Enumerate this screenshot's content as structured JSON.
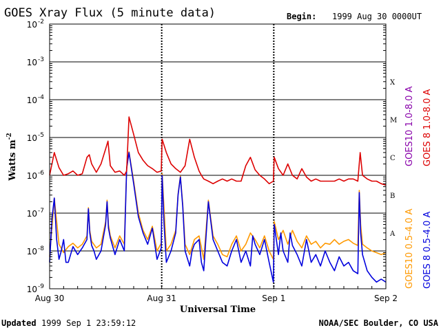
{
  "header": {
    "title": "GOES Xray Flux (5 minute data)",
    "begin_label": "Begin:",
    "begin_value": "1999 Aug 30 0000UT"
  },
  "footer": {
    "updated_label": "Updated",
    "updated_value": "1999 Sep  1 23:59:12",
    "credit": "NOAA/SEC Boulder, CO USA"
  },
  "colors": {
    "goes8_long": "#dd0000",
    "goes10_long": "#8800aa",
    "goes10_short": "#ff9900",
    "goes8_short": "#0000dd",
    "grid": "#000000"
  },
  "chart_data": {
    "type": "line",
    "title": "GOES Xray Flux (5 minute data)",
    "xlabel": "Universal Time",
    "ylabel": "Watts m",
    "ylabel_superscript": "-2",
    "y_scale": "log",
    "ylim": [
      1e-09,
      0.01
    ],
    "y_ticks": [
      {
        "base": "10",
        "exp": "-9"
      },
      {
        "base": "10",
        "exp": "-8"
      },
      {
        "base": "10",
        "exp": "-7"
      },
      {
        "base": "10",
        "exp": "-6"
      },
      {
        "base": "10",
        "exp": "-5"
      },
      {
        "base": "10",
        "exp": "-4"
      },
      {
        "base": "10",
        "exp": "-3"
      },
      {
        "base": "10",
        "exp": "-2"
      }
    ],
    "xlim": [
      0,
      72
    ],
    "x_ticks": [
      {
        "x": 0,
        "label": "Aug 30"
      },
      {
        "x": 24,
        "label": "Aug 31"
      },
      {
        "x": 48,
        "label": "Sep 1"
      },
      {
        "x": 72,
        "label": "Sep 2"
      }
    ],
    "flare_classes": [
      {
        "label": "A",
        "y": 3e-08
      },
      {
        "label": "B",
        "y": 3e-07
      },
      {
        "label": "C",
        "y": 3e-06
      },
      {
        "label": "M",
        "y": 3e-05
      },
      {
        "label": "X",
        "y": 0.0003
      }
    ],
    "legend": {
      "placement": "right",
      "entries": [
        "GOES 8  1.0-8.0 A",
        "GOES10  1.0-8.0 A",
        "GOES 8  0.5-4.0 A",
        "GOES10  0.5-4.0 A"
      ]
    },
    "series": [
      {
        "name": "GOES 8  1.0-8.0 A",
        "color": "#dd0000",
        "x": [
          0,
          1,
          2,
          3,
          4,
          5,
          6,
          7,
          8,
          8.5,
          9,
          10,
          11,
          12,
          12.5,
          13,
          14,
          15,
          16,
          16.5,
          17,
          18,
          19,
          20,
          21,
          22,
          23,
          23.9,
          24.1,
          25,
          26,
          27,
          28,
          29,
          30,
          31,
          32,
          32.5,
          33,
          34,
          35,
          36,
          37,
          38,
          39,
          40,
          41,
          42,
          43,
          44,
          45,
          46,
          47,
          47.9,
          48.1,
          49,
          50,
          51,
          52,
          53,
          54,
          55,
          56,
          57,
          58,
          59,
          60,
          61,
          62,
          63,
          64,
          65,
          66,
          66.5,
          67,
          68,
          69,
          70,
          71,
          72
        ],
        "y": [
          1e-06,
          4e-06,
          1.6e-06,
          1e-06,
          1.1e-06,
          1.3e-06,
          1e-06,
          1.1e-06,
          3e-06,
          3.5e-06,
          2e-06,
          1.2e-06,
          2e-06,
          5e-06,
          8e-06,
          1.8e-06,
          1.2e-06,
          1.3e-06,
          1e-06,
          1.3e-06,
          3.5e-05,
          1.2e-05,
          4e-06,
          2.5e-06,
          1.8e-06,
          1.5e-06,
          1.2e-06,
          1.3e-06,
          9e-06,
          4e-06,
          2e-06,
          1.5e-06,
          1.2e-06,
          1.8e-06,
          9e-06,
          3e-06,
          1.3e-06,
          1e-06,
          8e-07,
          7e-07,
          6e-07,
          7e-07,
          8e-07,
          7e-07,
          8e-07,
          7e-07,
          7e-07,
          1.8e-06,
          3e-06,
          1.4e-06,
          1e-06,
          8e-07,
          6e-07,
          7e-07,
          3e-06,
          1.5e-06,
          1e-06,
          2e-06,
          1e-06,
          8e-07,
          1.5e-06,
          9e-07,
          7e-07,
          8e-07,
          7e-07,
          7e-07,
          7e-07,
          7e-07,
          8e-07,
          7e-07,
          8e-07,
          8e-07,
          7e-07,
          4e-06,
          1e-06,
          8e-07,
          7e-07,
          7e-07,
          6e-07,
          5.5e-07
        ]
      },
      {
        "name": "GOES 8  0.5-4.0 A",
        "color": "#0000dd",
        "x": [
          0,
          0.5,
          1,
          1.5,
          2,
          2.5,
          3,
          3.5,
          4,
          5,
          6,
          7,
          8,
          8.3,
          8.6,
          9,
          9.5,
          10,
          11,
          12,
          12.3,
          12.6,
          13,
          14,
          15,
          16,
          16.5,
          17,
          18,
          19,
          20,
          21,
          22,
          23,
          23.9,
          24.1,
          24.5,
          25,
          26,
          27,
          27.5,
          28,
          28.5,
          29,
          30,
          30.5,
          31,
          32,
          32.5,
          33,
          34,
          35,
          36,
          37,
          38,
          39,
          40,
          41,
          42,
          43,
          43.5,
          44,
          45,
          46,
          47,
          47.9,
          48.1,
          49,
          49.5,
          50,
          51,
          51.5,
          52,
          53,
          54,
          55,
          56,
          57,
          58,
          59,
          60,
          61,
          62,
          63,
          64,
          65,
          66,
          66.3,
          66.6,
          67,
          68,
          69,
          70,
          71,
          72
        ],
        "y": [
          5e-09,
          7e-08,
          2.5e-07,
          2e-08,
          6e-09,
          1e-08,
          2e-08,
          5e-09,
          5e-09,
          1.3e-08,
          8e-09,
          1.2e-08,
          2e-08,
          1.3e-07,
          3e-08,
          1.4e-08,
          1e-08,
          6e-09,
          1e-08,
          5e-08,
          2e-07,
          4e-08,
          2.2e-08,
          8e-09,
          2e-08,
          1e-08,
          1.5e-06,
          4e-06,
          6e-07,
          8e-08,
          3e-08,
          1.5e-08,
          4e-08,
          6e-09,
          1.2e-08,
          1e-06,
          5e-08,
          5e-09,
          1e-08,
          3e-08,
          3e-07,
          9e-07,
          1.5e-07,
          1e-08,
          4e-09,
          1e-08,
          1.5e-08,
          2e-08,
          5e-09,
          3e-09,
          2e-07,
          2e-08,
          1e-08,
          5e-09,
          4e-09,
          1e-08,
          2e-08,
          5e-09,
          1e-08,
          4e-09,
          2.5e-08,
          1.5e-08,
          8e-09,
          2e-08,
          5e-09,
          1.5e-09,
          5e-08,
          8e-09,
          3e-08,
          1e-08,
          5e-09,
          3e-08,
          1.4e-08,
          8e-09,
          4e-09,
          2e-08,
          5e-09,
          8e-09,
          4e-09,
          1e-08,
          5e-09,
          3e-09,
          7e-09,
          4e-09,
          5e-09,
          3e-09,
          2.5e-09,
          3.5e-07,
          3e-08,
          8e-09,
          3e-09,
          2e-09,
          1.5e-09,
          1.8e-09,
          1.5e-09
        ]
      },
      {
        "name": "GOES10  0.5-4.0 A",
        "color": "#ff9900",
        "x": [
          0,
          1,
          2,
          3,
          4,
          5,
          6,
          7,
          8,
          8.3,
          8.6,
          9,
          10,
          11,
          12,
          12.3,
          12.6,
          13,
          14,
          15,
          16,
          16.5,
          17,
          18,
          19,
          20,
          21,
          22,
          23,
          23.9,
          24.1,
          25,
          26,
          27,
          27.5,
          28,
          28.5,
          29,
          30,
          31,
          32,
          33,
          34,
          35,
          36,
          37,
          38,
          39,
          40,
          41,
          42,
          43,
          44,
          45,
          46,
          47,
          47.9,
          48.1,
          49,
          50,
          51,
          52,
          53,
          54,
          55,
          56,
          57,
          58,
          59,
          60,
          61,
          62,
          63,
          64,
          65,
          66,
          66.3,
          66.6,
          67,
          68,
          69,
          70,
          71,
          72
        ],
        "y": [
          7e-09,
          2.5e-07,
          1.5e-08,
          9e-09,
          1.3e-08,
          1.6e-08,
          1.2e-08,
          1.5e-08,
          2.5e-08,
          1.4e-07,
          3.5e-08,
          1.8e-08,
          1.2e-08,
          1.5e-08,
          6e-08,
          2.2e-07,
          5e-08,
          2.5e-08,
          1.2e-08,
          2.5e-08,
          1.5e-08,
          1.6e-06,
          4.2e-06,
          7e-07,
          1e-07,
          3.5e-08,
          2e-08,
          4.5e-08,
          1e-08,
          1.6e-08,
          1.1e-06,
          1e-08,
          1.5e-08,
          3.5e-08,
          3.2e-07,
          9.5e-07,
          1.7e-07,
          1.5e-08,
          8e-09,
          2e-08,
          2.5e-08,
          6e-09,
          2.2e-07,
          2.5e-08,
          1.5e-08,
          8e-09,
          7e-09,
          1.5e-08,
          2.5e-08,
          1e-08,
          1.5e-08,
          3e-08,
          2e-08,
          1.2e-08,
          2.5e-08,
          1e-08,
          6e-09,
          6e-08,
          2e-08,
          3.5e-08,
          1.5e-08,
          3.5e-08,
          1.8e-08,
          1.2e-08,
          2.5e-08,
          1.5e-08,
          1.8e-08,
          1.2e-08,
          1.6e-08,
          1.5e-08,
          2e-08,
          1.5e-08,
          1.8e-08,
          2e-08,
          1.6e-08,
          1.4e-08,
          4e-07,
          5e-08,
          1.5e-08,
          1.2e-08,
          1e-08,
          9e-09,
          8e-09,
          9e-09
        ]
      }
    ]
  }
}
